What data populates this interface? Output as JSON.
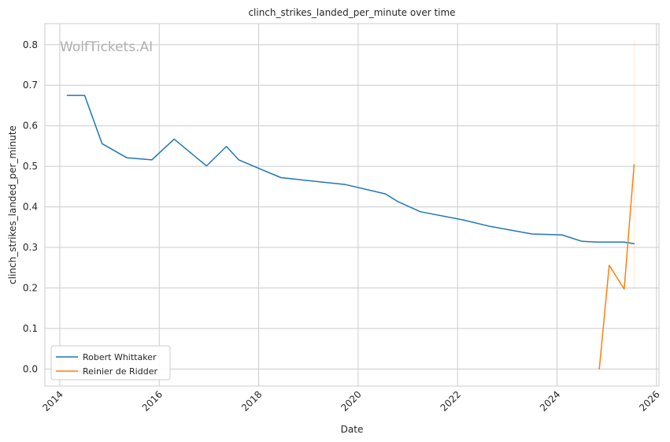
{
  "chart_data": {
    "type": "line",
    "title": "clinch_strikes_landed_per_minute over time",
    "xlabel": "Date",
    "ylabel": "clinch_strikes_landed_per_minute",
    "watermark": "WolfTickets.AI",
    "xlim": [
      2013.7,
      2026.05
    ],
    "ylim": [
      -0.042,
      0.852
    ],
    "x_ticks": [
      2014,
      2016,
      2018,
      2020,
      2022,
      2024,
      2026
    ],
    "x_tick_labels": [
      "2014",
      "2016",
      "2018",
      "2020",
      "2022",
      "2024",
      "2026"
    ],
    "y_ticks": [
      0.0,
      0.1,
      0.2,
      0.3,
      0.4,
      0.5,
      0.6,
      0.7,
      0.8
    ],
    "y_tick_labels": [
      "0.0",
      "0.1",
      "0.2",
      "0.3",
      "0.4",
      "0.5",
      "0.6",
      "0.7",
      "0.8"
    ],
    "grid": true,
    "legend_position": "lower-left",
    "series": [
      {
        "name": "Robert Whittaker",
        "color": "#1f77b4",
        "x": [
          2014.15,
          2014.5,
          2014.85,
          2015.35,
          2015.85,
          2016.3,
          2016.95,
          2017.35,
          2017.6,
          2018.1,
          2018.45,
          2019.75,
          2020.55,
          2020.8,
          2021.25,
          2022.1,
          2022.65,
          2023.5,
          2024.1,
          2024.5,
          2024.8,
          2025.35,
          2025.55
        ],
        "y": [
          0.675,
          0.675,
          0.556,
          0.521,
          0.516,
          0.567,
          0.501,
          0.549,
          0.516,
          0.49,
          0.472,
          0.455,
          0.432,
          0.413,
          0.388,
          0.368,
          0.352,
          0.333,
          0.331,
          0.315,
          0.313,
          0.313,
          0.309
        ]
      },
      {
        "name": "Reinier de Ridder",
        "color": "#ff7f0e",
        "x": [
          2024.85,
          2025.05,
          2025.35,
          2025.55
        ],
        "y": [
          0.0,
          0.256,
          0.197,
          0.504
        ]
      }
    ],
    "band": {
      "series": "Reinier de Ridder",
      "x": 2025.55,
      "y_low": 0.197,
      "y_high": 0.812
    }
  }
}
